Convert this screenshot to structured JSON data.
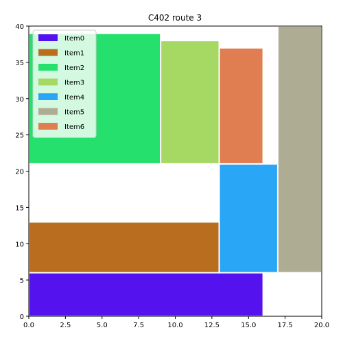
{
  "chart_data": {
    "type": "bar",
    "title": "C402 route 3",
    "xlabel": "",
    "ylabel": "",
    "xlim": [
      0,
      20
    ],
    "ylim": [
      0,
      40
    ],
    "xticks": [
      "0.0",
      "2.5",
      "5.0",
      "7.5",
      "10.0",
      "12.5",
      "15.0",
      "17.5",
      "20.0"
    ],
    "yticks": [
      "0",
      "5",
      "10",
      "15",
      "20",
      "25",
      "30",
      "35",
      "40"
    ],
    "grid": false,
    "legend_position": "top-left",
    "items": [
      {
        "name": "Item0",
        "color": "#5312ee",
        "x0": 0,
        "x1": 16,
        "y0": 0,
        "y1": 6
      },
      {
        "name": "Item1",
        "color": "#b86e1e",
        "x0": 0,
        "x1": 13,
        "y0": 6,
        "y1": 13
      },
      {
        "name": "Item2",
        "color": "#25e06c",
        "x0": 0,
        "x1": 9,
        "y0": 21,
        "y1": 39
      },
      {
        "name": "Item3",
        "color": "#a6d864",
        "x0": 9,
        "x1": 13,
        "y0": 21,
        "y1": 38
      },
      {
        "name": "Item4",
        "color": "#29a6f6",
        "x0": 13,
        "x1": 17,
        "y0": 6,
        "y1": 21
      },
      {
        "name": "Item5",
        "color": "#aeac92",
        "x0": 17,
        "x1": 20,
        "y0": 6,
        "y1": 40
      },
      {
        "name": "Item6",
        "color": "#e07e52",
        "x0": 13,
        "x1": 16,
        "y0": 21,
        "y1": 37
      }
    ]
  }
}
